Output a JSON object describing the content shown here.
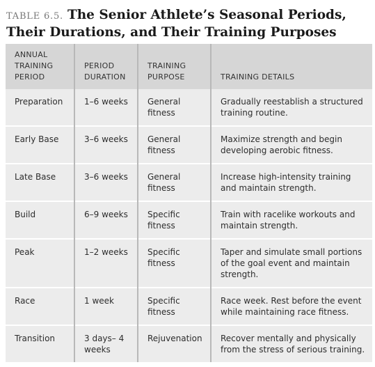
{
  "caption": {
    "number": "TABLE 6.5.",
    "title": "The Senior Athlete’s Seasonal Periods, Their Durations, and Their Training Purposes"
  },
  "table": {
    "headers": [
      "ANNUAL TRAINING PERIOD",
      "PERIOD DURATION",
      "TRAINING PURPOSE",
      "TRAINING DETAILS"
    ],
    "rows": [
      {
        "period": "Preparation",
        "duration": "1–6 weeks",
        "purpose": "General fitness",
        "details": "Gradually reestablish a structured training routine."
      },
      {
        "period": "Early Base",
        "duration": "3–6 weeks",
        "purpose": "General fitness",
        "details": "Maximize strength and begin developing aerobic fitness."
      },
      {
        "period": "Late Base",
        "duration": "3–6 weeks",
        "purpose": "General fitness",
        "details": "Increase high-intensity training and maintain strength."
      },
      {
        "period": "Build",
        "duration": "6–9 weeks",
        "purpose": "Specific fitness",
        "details": "Train with racelike workouts and maintain strength."
      },
      {
        "period": "Peak",
        "duration": "1–2 weeks",
        "purpose": "Specific fitness",
        "details": "Taper and simulate small portions of the goal event and maintain strength."
      },
      {
        "period": "Race",
        "duration": "1 week",
        "purpose": "Specific fitness",
        "details": "Race week. Rest before the event while maintaining race fitness."
      },
      {
        "period": "Transition",
        "duration": "3 days– 4 weeks",
        "purpose": "Rejuvenation",
        "details": "Recover mentally and physically from the stress of serious training."
      }
    ]
  }
}
